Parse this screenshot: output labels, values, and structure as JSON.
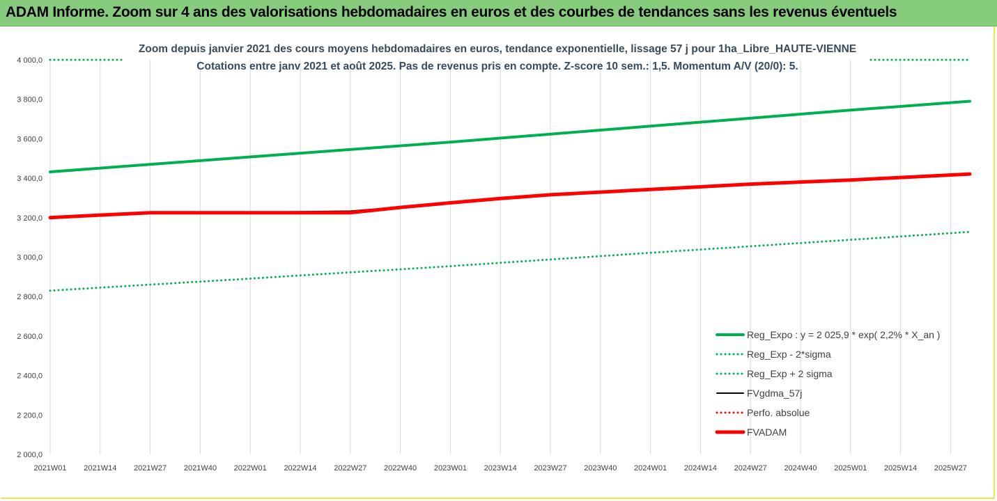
{
  "header": {
    "title": "ADAM Informe. Zoom sur 4 ans des valorisations hebdomadaires en euros et des courbes de tendances sans les revenus éventuels"
  },
  "chart_data": {
    "type": "line",
    "title_lines": [
      "Zoom depuis janvier 2021 des cours moyens hebdomadaires en euros, tendance exponentielle, lissage 57 j pour 1ha_Libre_HAUTE-VIENNE",
      "Cotations entre janv 2021 et août 2025.  Pas de revenus pris en compte. Z-score 10 sem.: 1,5. Momentum A/V (20/0): 5."
    ],
    "xlabel": "",
    "ylabel": "",
    "ylim": [
      2000,
      4000
    ],
    "y_ticks": [
      "4 000,0",
      "3 800,0",
      "3 600,0",
      "3 400,0",
      "3 200,0",
      "3 000,0",
      "2 800,0",
      "2 600,0",
      "2 400,0",
      "2 200,0",
      "2 000,0"
    ],
    "x_tick_labels": [
      "2021W01",
      "2021W14",
      "2021W27",
      "2021W40",
      "2022W01",
      "2022W14",
      "2022W27",
      "2022W40",
      "2023W01",
      "2023W14",
      "2023W27",
      "2023W40",
      "2024W01",
      "2024W14",
      "2024W27",
      "2024W40",
      "2025W01",
      "2025W14",
      "2025W27"
    ],
    "x_range": [
      "2021W01",
      "2025W32"
    ],
    "grid": "vertical",
    "legend_position": "bottom-right",
    "series": [
      {
        "name": "Reg_Expo : y = 2 025,9 * exp( 2,2% *  X_an )",
        "color": "#00b050",
        "style": "solid-thick",
        "points": [
          [
            "2021W01",
            3432
          ],
          [
            "2022W01",
            3508
          ],
          [
            "2023W01",
            3583
          ],
          [
            "2024W01",
            3664
          ],
          [
            "2025W01",
            3745
          ],
          [
            "2025W32",
            3790
          ]
        ]
      },
      {
        "name": "Reg_Exp - 2*sigma",
        "color": "#00b050",
        "style": "dotted",
        "points": [
          [
            "2021W01",
            2830
          ],
          [
            "2022W01",
            2891
          ],
          [
            "2023W01",
            2954
          ],
          [
            "2024W01",
            3022
          ],
          [
            "2025W01",
            3088
          ],
          [
            "2025W32",
            3128
          ]
        ]
      },
      {
        "name": "Reg_Exp + 2 sigma",
        "color": "#00b050",
        "style": "dotted",
        "points": [
          [
            "2021W01",
            4000
          ],
          [
            "2025W32",
            4000
          ]
        ],
        "note_visible": "beyond upper axis limit"
      },
      {
        "name": "FVgdma_57j",
        "color": "#000000",
        "style": "solid",
        "points": [
          [
            "2021W01",
            3200
          ],
          [
            "2021W27",
            3225
          ],
          [
            "2022W01",
            3227
          ],
          [
            "2022W27",
            3233
          ],
          [
            "2022W40",
            3254
          ],
          [
            "2023W01",
            3276
          ],
          [
            "2023W27",
            3316
          ],
          [
            "2024W01",
            3345
          ],
          [
            "2024W27",
            3370
          ],
          [
            "2025W01",
            3392
          ],
          [
            "2025W32",
            3421
          ]
        ]
      },
      {
        "name": "Perfo. absolue",
        "color": "#ff0000",
        "style": "dotted",
        "points": []
      },
      {
        "name": "FVADAM",
        "color": "#ff0000",
        "style": "solid-thick",
        "points": [
          [
            "2021W01",
            3200
          ],
          [
            "2021W14",
            3213
          ],
          [
            "2021W27",
            3225
          ],
          [
            "2022W01",
            3225
          ],
          [
            "2022W27",
            3225
          ],
          [
            "2022W40",
            3252
          ],
          [
            "2023W01",
            3275
          ],
          [
            "2023W14",
            3297
          ],
          [
            "2023W27",
            3316
          ],
          [
            "2024W01",
            3343
          ],
          [
            "2024W27",
            3370
          ],
          [
            "2025W01",
            3391
          ],
          [
            "2025W32",
            3421
          ]
        ]
      }
    ]
  }
}
